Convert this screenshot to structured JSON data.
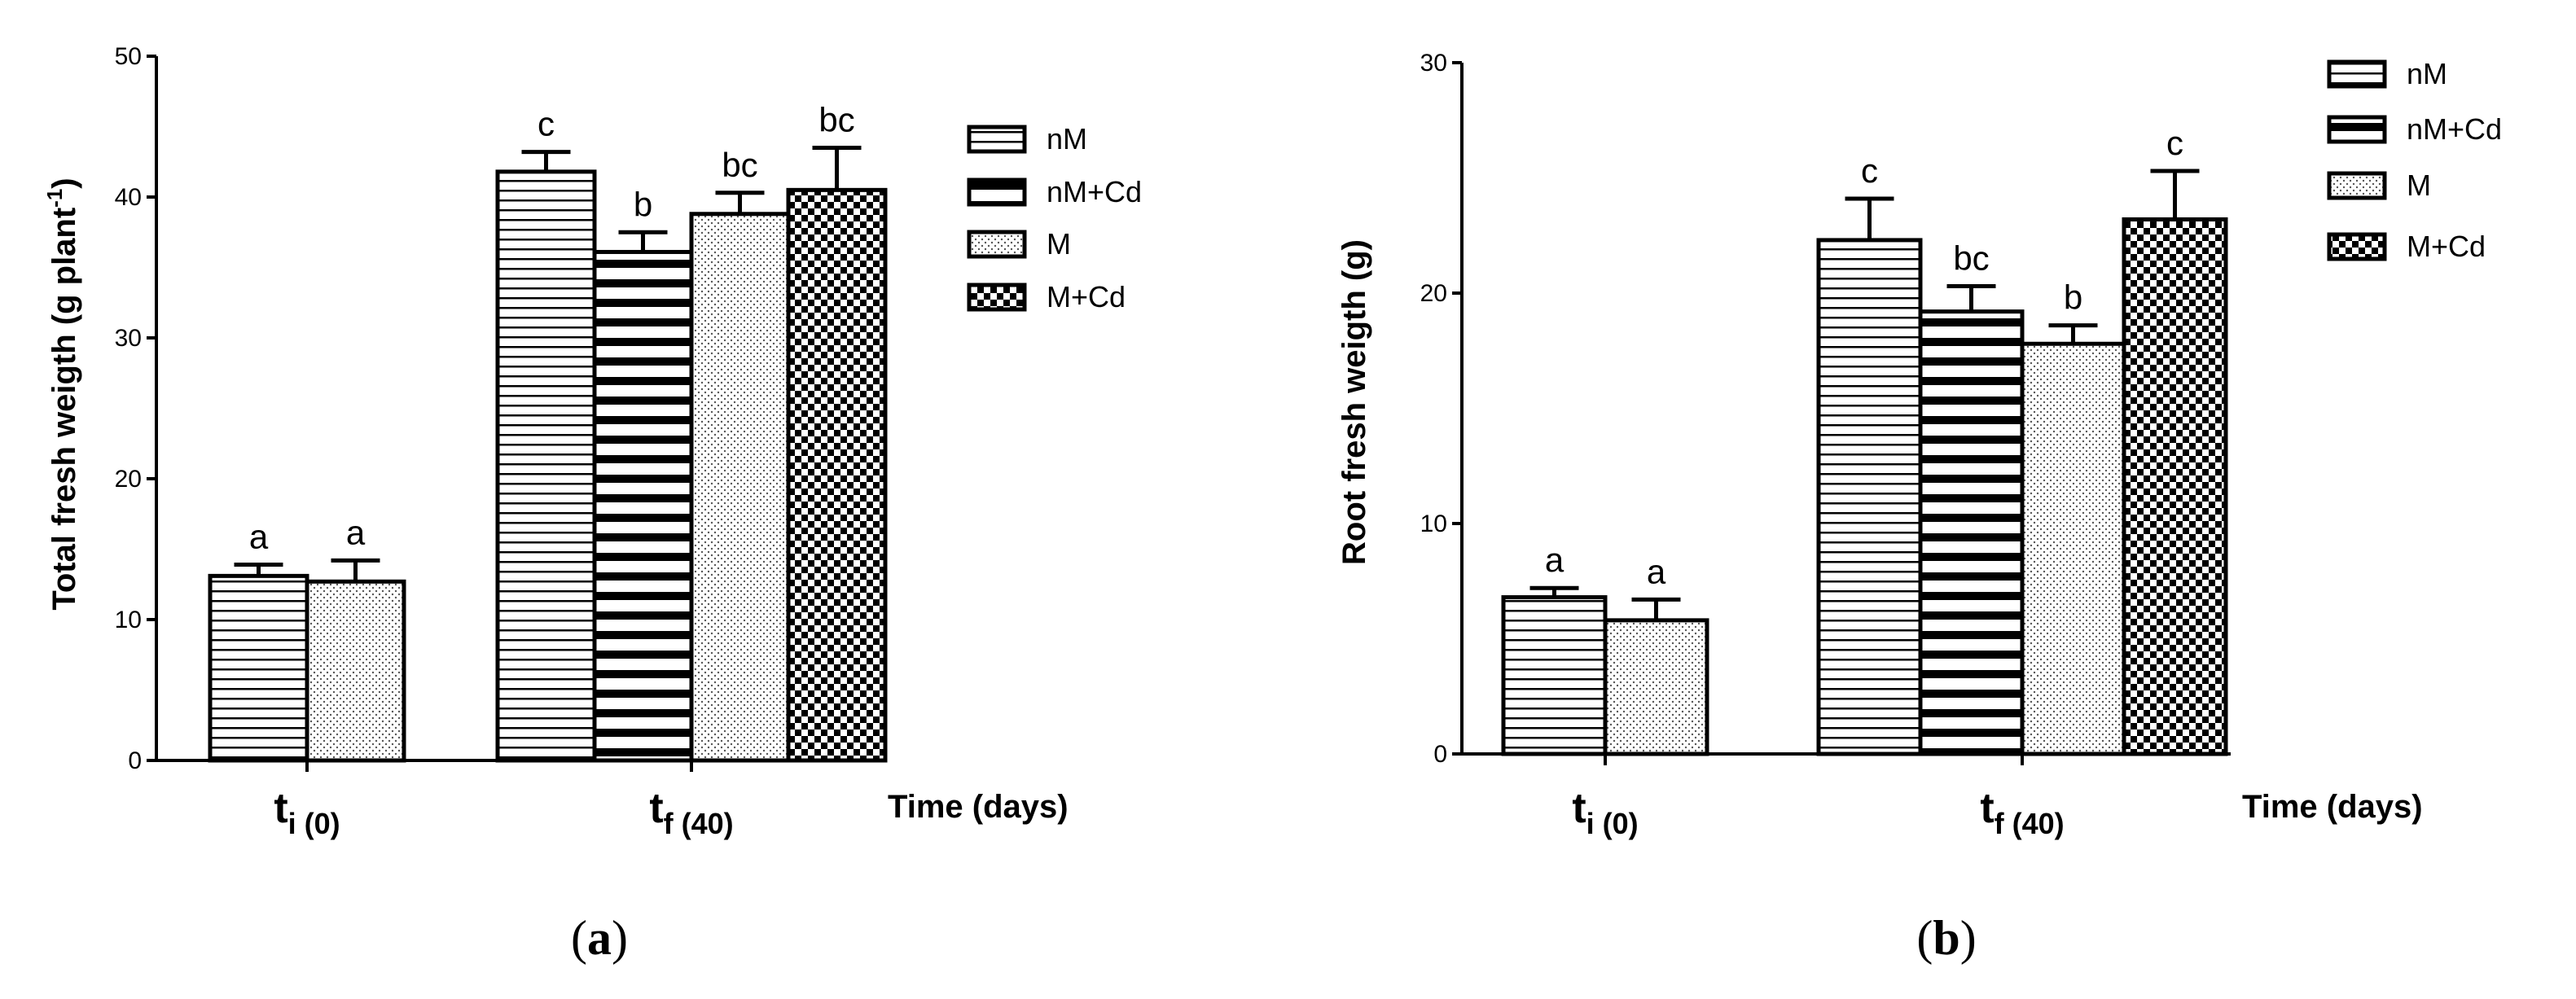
{
  "chart_data": [
    {
      "type": "bar",
      "panel_label": {
        "open": "(",
        "letter": "a",
        "close": ")"
      },
      "ylabel": {
        "text": "Total fresh weigth (g plant",
        "superscript": "-1",
        "suffix": ")"
      },
      "xlabel": "Time (days)",
      "categories": [
        {
          "base": "t",
          "subscript": "i (0)"
        },
        {
          "base": "t",
          "subscript": "f (40)"
        }
      ],
      "ylim": [
        0,
        50
      ],
      "yticks": [
        0,
        10,
        20,
        30,
        40,
        50
      ],
      "series": [
        {
          "name": "nM",
          "pattern": "horizontal-thin",
          "values": [
            13.1,
            41.8
          ],
          "errors": [
            0.8,
            1.4
          ],
          "labels": [
            "a",
            "c"
          ]
        },
        {
          "name": "nM+Cd",
          "pattern": "horizontal-thick",
          "values": [
            null,
            36.1
          ],
          "errors": [
            null,
            1.4
          ],
          "labels": [
            null,
            "b"
          ]
        },
        {
          "name": "M",
          "pattern": "dots",
          "values": [
            12.7,
            38.8
          ],
          "errors": [
            1.5,
            1.5
          ],
          "labels": [
            "a",
            "bc"
          ]
        },
        {
          "name": "M+Cd",
          "pattern": "checker",
          "values": [
            null,
            40.5
          ],
          "errors": [
            null,
            3.0
          ],
          "labels": [
            null,
            "bc"
          ]
        }
      ]
    },
    {
      "type": "bar",
      "panel_label": {
        "open": "(",
        "letter": "b",
        "close": ")"
      },
      "ylabel": {
        "text": "Root fresh weigth (g)"
      },
      "xlabel": "Time (days)",
      "categories": [
        {
          "base": "t",
          "subscript": "i (0)"
        },
        {
          "base": "t",
          "subscript": "f (40)"
        }
      ],
      "ylim": [
        0,
        30
      ],
      "yticks": [
        0,
        10,
        20,
        30
      ],
      "series": [
        {
          "name": "nM",
          "pattern": "horizontal-thin",
          "values": [
            6.8,
            22.3
          ],
          "errors": [
            0.4,
            1.8
          ],
          "labels": [
            "a",
            "c"
          ]
        },
        {
          "name": "nM+Cd",
          "pattern": "horizontal-thick",
          "values": [
            null,
            19.2
          ],
          "errors": [
            null,
            1.1
          ],
          "labels": [
            null,
            "bc"
          ]
        },
        {
          "name": "M",
          "pattern": "dots",
          "values": [
            5.8,
            17.8
          ],
          "errors": [
            0.9,
            0.8
          ],
          "labels": [
            "a",
            "b"
          ]
        },
        {
          "name": "M+Cd",
          "pattern": "checker",
          "values": [
            null,
            23.2
          ],
          "errors": [
            null,
            2.1
          ],
          "labels": [
            null,
            "c"
          ]
        }
      ]
    }
  ]
}
